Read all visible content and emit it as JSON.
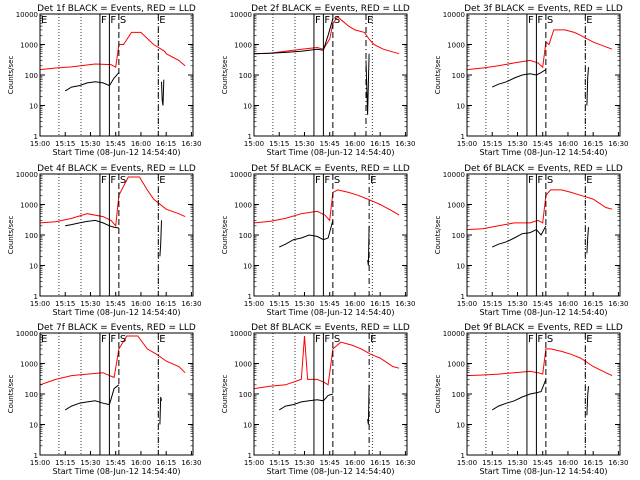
{
  "common": {
    "y_label": "Counts/sec",
    "x_label": "Start Time (08-Jun-12 14:54:40)",
    "y_ticks": [
      "1",
      "10",
      "100",
      "1000",
      "10000"
    ],
    "x_ticks": [
      "15:00",
      "15:15",
      "15:30",
      "15:45",
      "16:00",
      "16:15",
      "16:30"
    ],
    "colors": {
      "events": "#000000",
      "lld": "#ff0000"
    }
  },
  "chart_data": [
    {
      "type": "line",
      "title": "Det 1f BLACK = Events, RED = LLD",
      "series": [
        {
          "color": "#ff0000",
          "x": [
            0,
            10,
            20,
            35,
            45,
            48,
            50,
            53,
            58,
            64,
            72,
            79,
            80,
            88,
            92
          ],
          "y": [
            150,
            170,
            185,
            230,
            220,
            180,
            1000,
            1000,
            2500,
            2500,
            1000,
            600,
            500,
            300,
            200
          ]
        },
        {
          "color": "#000000",
          "x": [
            16,
            20,
            25,
            30,
            35,
            40,
            44,
            47,
            50
          ],
          "y": [
            30,
            40,
            45,
            55,
            60,
            55,
            45,
            80,
            120
          ]
        },
        {
          "color": "#000000",
          "x": [
            77,
            77.5,
            78,
            78.5
          ],
          "y": [
            60,
            15,
            10,
            70
          ]
        }
      ],
      "markers": [
        {
          "label": "E",
          "x": 0
        },
        {
          "label": "F",
          "x": 38
        },
        {
          "label": "F",
          "x": 44
        },
        {
          "label": "S",
          "x": 50
        },
        {
          "label": "E",
          "x": 75
        }
      ],
      "xlim": [
        0,
        97
      ],
      "ylim": [
        1,
        10000
      ]
    },
    {
      "type": "line",
      "title": "Det 2f BLACK = Events, RED = LLD",
      "series": [
        {
          "color": "#ff0000",
          "x": [
            0,
            10,
            20,
            30,
            40,
            44,
            48,
            50,
            53,
            56,
            60,
            64,
            70,
            73,
            76,
            82,
            92
          ],
          "y": [
            500,
            520,
            600,
            700,
            800,
            700,
            1500,
            5000,
            8000,
            6000,
            4000,
            3000,
            2500,
            1500,
            1000,
            700,
            500
          ]
        },
        {
          "color": "#000000",
          "x": [
            0,
            10,
            20,
            30,
            40,
            44,
            47,
            50
          ],
          "y": [
            500,
            520,
            550,
            600,
            700,
            650,
            2000,
            7000
          ]
        },
        {
          "color": "#000000",
          "x": [
            71,
            72,
            73
          ],
          "y": [
            300,
            5,
            500
          ]
        }
      ],
      "markers": [
        {
          "label": "F",
          "x": 38
        },
        {
          "label": "F",
          "x": 44
        },
        {
          "label": "S",
          "x": 50
        },
        {
          "label": "E",
          "x": 71
        }
      ],
      "xlim": [
        0,
        97
      ],
      "ylim": [
        1,
        10000
      ]
    },
    {
      "type": "line",
      "title": "Det 3f BLACK = Events, RED = LLD",
      "series": [
        {
          "color": "#ff0000",
          "x": [
            0,
            10,
            20,
            30,
            40,
            45,
            48,
            50,
            52,
            55,
            62,
            68,
            72,
            80,
            92
          ],
          "y": [
            150,
            170,
            200,
            250,
            300,
            250,
            180,
            1200,
            1000,
            3000,
            3000,
            2500,
            2000,
            1200,
            700
          ]
        },
        {
          "color": "#000000",
          "x": [
            16,
            20,
            25,
            30,
            35,
            40,
            44,
            47,
            50
          ],
          "y": [
            40,
            50,
            60,
            80,
            100,
            110,
            100,
            120,
            150
          ]
        },
        {
          "color": "#000000",
          "x": [
            76,
            76.5,
            77
          ],
          "y": [
            10,
            80,
            180
          ]
        }
      ],
      "markers": [
        {
          "label": "F",
          "x": 38
        },
        {
          "label": "F",
          "x": 44
        },
        {
          "label": "S",
          "x": 50
        },
        {
          "label": "E",
          "x": 75
        }
      ],
      "xlim": [
        0,
        97
      ],
      "ylim": [
        1,
        10000
      ]
    },
    {
      "type": "line",
      "title": "Det 4f BLACK = Events, RED = LLD",
      "series": [
        {
          "color": "#ff0000",
          "x": [
            0,
            10,
            20,
            30,
            40,
            45,
            48,
            50,
            56,
            63,
            68,
            72,
            80,
            88,
            92
          ],
          "y": [
            250,
            270,
            350,
            500,
            400,
            300,
            200,
            2000,
            8000,
            8000,
            3000,
            1500,
            700,
            500,
            400
          ]
        },
        {
          "color": "#000000",
          "x": [
            16,
            20,
            25,
            30,
            35,
            40,
            44,
            47,
            50
          ],
          "y": [
            200,
            220,
            250,
            280,
            300,
            250,
            200,
            180,
            170
          ]
        },
        {
          "color": "#000000",
          "x": [
            76,
            76.5,
            77
          ],
          "y": [
            20,
            50,
            300
          ]
        }
      ],
      "markers": [
        {
          "label": "F",
          "x": 38
        },
        {
          "label": "F",
          "x": 44
        },
        {
          "label": "S",
          "x": 50
        },
        {
          "label": "E",
          "x": 75
        }
      ],
      "xlim": [
        0,
        97
      ],
      "ylim": [
        1,
        10000
      ]
    },
    {
      "type": "line",
      "title": "Det 5f BLACK = Events, RED = LLD",
      "series": [
        {
          "color": "#ff0000",
          "x": [
            0,
            10,
            20,
            30,
            40,
            45,
            48,
            50,
            53,
            60,
            66,
            72,
            80,
            88,
            92
          ],
          "y": [
            250,
            280,
            350,
            500,
            600,
            450,
            300,
            2500,
            3000,
            2500,
            2000,
            1500,
            1000,
            600,
            450
          ]
        },
        {
          "color": "#000000",
          "x": [
            16,
            20,
            25,
            30,
            35,
            40,
            44,
            47,
            50
          ],
          "y": [
            40,
            50,
            70,
            80,
            100,
            90,
            70,
            80,
            300
          ]
        },
        {
          "color": "#000000",
          "x": [
            72,
            72.5,
            73
          ],
          "y": [
            15,
            10,
            200
          ]
        }
      ],
      "markers": [
        {
          "label": "F",
          "x": 38
        },
        {
          "label": "F",
          "x": 44
        },
        {
          "label": "S",
          "x": 50
        },
        {
          "label": "E",
          "x": 73
        }
      ],
      "xlim": [
        0,
        97
      ],
      "ylim": [
        1,
        10000
      ]
    },
    {
      "type": "line",
      "title": "Det 6f BLACK = Events, RED = LLD",
      "series": [
        {
          "color": "#ff0000",
          "x": [
            0,
            10,
            20,
            30,
            40,
            45,
            48,
            50,
            53,
            60,
            66,
            72,
            80,
            88,
            92
          ],
          "y": [
            150,
            160,
            200,
            250,
            250,
            300,
            250,
            2000,
            3000,
            3000,
            2500,
            2000,
            1500,
            800,
            700
          ]
        },
        {
          "color": "#000000",
          "x": [
            16,
            20,
            25,
            30,
            35,
            40,
            44,
            47,
            50
          ],
          "y": [
            40,
            50,
            60,
            80,
            110,
            120,
            150,
            100,
            200
          ]
        },
        {
          "color": "#000000",
          "x": [
            76,
            76.5,
            77
          ],
          "y": [
            25,
            80,
            180
          ]
        }
      ],
      "markers": [
        {
          "label": "F",
          "x": 38
        },
        {
          "label": "F",
          "x": 44
        },
        {
          "label": "S",
          "x": 50
        },
        {
          "label": "E",
          "x": 75
        }
      ],
      "xlim": [
        0,
        97
      ],
      "ylim": [
        1,
        10000
      ]
    },
    {
      "type": "line",
      "title": "Det 7f BLACK = Events, RED = LLD",
      "series": [
        {
          "color": "#ff0000",
          "x": [
            0,
            10,
            20,
            30,
            40,
            44,
            47,
            50,
            55,
            62,
            68,
            74,
            80,
            88,
            92
          ],
          "y": [
            200,
            300,
            400,
            450,
            500,
            400,
            350,
            3000,
            8000,
            8000,
            3000,
            2000,
            1200,
            800,
            500
          ]
        },
        {
          "color": "#000000",
          "x": [
            16,
            20,
            25,
            30,
            35,
            40,
            44,
            47,
            50
          ],
          "y": [
            30,
            40,
            50,
            55,
            60,
            50,
            45,
            150,
            200
          ]
        },
        {
          "color": "#000000",
          "x": [
            76,
            76.5,
            77
          ],
          "y": [
            10,
            80,
            60
          ]
        }
      ],
      "markers": [
        {
          "label": "E",
          "x": 0
        },
        {
          "label": "F",
          "x": 38
        },
        {
          "label": "F",
          "x": 44
        },
        {
          "label": "S",
          "x": 50
        },
        {
          "label": "E",
          "x": 75
        }
      ],
      "xlim": [
        0,
        97
      ],
      "ylim": [
        1,
        10000
      ]
    },
    {
      "type": "line",
      "title": "Det 8f BLACK = Events, RED = LLD",
      "series": [
        {
          "color": "#ff0000",
          "x": [
            0,
            10,
            20,
            30,
            32,
            34,
            40,
            44,
            47,
            50,
            55,
            62,
            68,
            74,
            80,
            88,
            92
          ],
          "y": [
            150,
            180,
            200,
            300,
            8000,
            300,
            300,
            250,
            200,
            3000,
            5000,
            4000,
            3000,
            2000,
            1500,
            800,
            700
          ]
        },
        {
          "color": "#000000",
          "x": [
            16,
            20,
            25,
            30,
            35,
            40,
            44,
            47,
            50
          ],
          "y": [
            30,
            40,
            45,
            55,
            60,
            65,
            60,
            90,
            100
          ]
        },
        {
          "color": "#000000",
          "x": [
            72,
            72.5,
            73
          ],
          "y": [
            15,
            10,
            200
          ]
        }
      ],
      "markers": [
        {
          "label": "F",
          "x": 38
        },
        {
          "label": "F",
          "x": 44
        },
        {
          "label": "S",
          "x": 50
        },
        {
          "label": "E",
          "x": 73
        }
      ],
      "xlim": [
        0,
        97
      ],
      "ylim": [
        1,
        10000
      ]
    },
    {
      "type": "line",
      "title": "Det 9f BLACK = Events, RED = LLD",
      "series": [
        {
          "color": "#ff0000",
          "x": [
            0,
            10,
            20,
            30,
            40,
            45,
            48,
            50,
            53,
            60,
            66,
            72,
            80,
            88,
            92
          ],
          "y": [
            400,
            420,
            450,
            500,
            550,
            500,
            450,
            3000,
            3000,
            2500,
            2000,
            1500,
            800,
            500,
            400
          ]
        },
        {
          "color": "#000000",
          "x": [
            16,
            20,
            25,
            30,
            35,
            40,
            44,
            47,
            50
          ],
          "y": [
            30,
            40,
            50,
            60,
            80,
            100,
            110,
            120,
            300
          ]
        },
        {
          "color": "#000000",
          "x": [
            76,
            76.5,
            77
          ],
          "y": [
            20,
            90,
            180
          ]
        }
      ],
      "markers": [
        {
          "label": "F",
          "x": 38
        },
        {
          "label": "F",
          "x": 44
        },
        {
          "label": "S",
          "x": 50
        },
        {
          "label": "E",
          "x": 75
        }
      ],
      "xlim": [
        0,
        97
      ],
      "ylim": [
        1,
        10000
      ]
    }
  ]
}
